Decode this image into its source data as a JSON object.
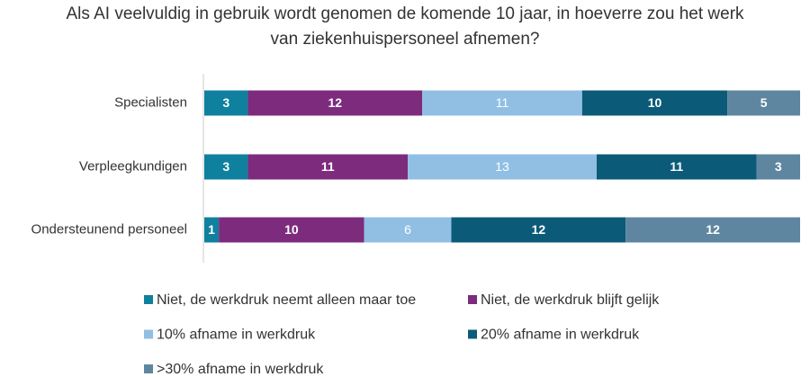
{
  "chart_data": {
    "type": "bar",
    "orientation": "horizontal",
    "stacked": true,
    "normalized": true,
    "title": "Als AI veelvuldig in gebruik wordt genomen de komende 10 jaar, in hoeverre zou het werk van ziekenhuispersoneel afnemen?",
    "categories": [
      "Specialisten",
      "Verpleegkundigen",
      "Ondersteunend personeel"
    ],
    "series": [
      {
        "name": "Niet, de werkdruk neemt alleen maar toe",
        "color": "#10809f",
        "values": [
          3,
          3,
          1
        ]
      },
      {
        "name": "Niet, de werkdruk blijft gelijk",
        "color": "#7d2b7c",
        "values": [
          12,
          11,
          10
        ]
      },
      {
        "name": "10% afname in werkdruk",
        "color": "#91bfe4",
        "values": [
          11,
          13,
          6
        ]
      },
      {
        "name": "20% afname in werkdruk",
        "color": "#0b5b78",
        "values": [
          10,
          11,
          12
        ]
      },
      {
        "name": ">30% afname in werkdruk",
        "color": "#5f86a0",
        "values": [
          5,
          3,
          12
        ]
      }
    ]
  }
}
